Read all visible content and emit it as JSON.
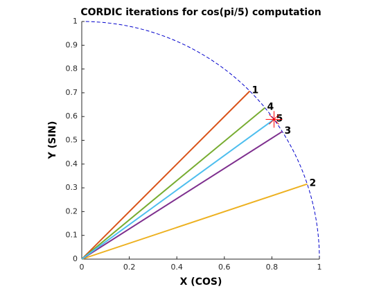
{
  "chart_data": {
    "type": "line",
    "title": "CORDIC iterations for cos(pi/5) computation",
    "x_label": "X (COS)",
    "y_label": "Y (SIN)",
    "xlim": [
      0,
      1
    ],
    "ylim": [
      0,
      1
    ],
    "xticks": [
      0,
      0.2,
      0.4,
      0.6,
      0.8,
      1
    ],
    "yticks": [
      0,
      0.1,
      0.2,
      0.3,
      0.4,
      0.5,
      0.6,
      0.7,
      0.8,
      0.9,
      1
    ],
    "series": [
      {
        "name": "1",
        "color": "#D95319",
        "x": [
          0,
          0.707
        ],
        "values": [
          0,
          0.707
        ]
      },
      {
        "name": "2",
        "color": "#EDB120",
        "x": [
          0,
          0.949
        ],
        "values": [
          0,
          0.316
        ]
      },
      {
        "name": "3",
        "color": "#7E2F8E",
        "x": [
          0,
          0.844
        ],
        "values": [
          0,
          0.537
        ]
      },
      {
        "name": "4",
        "color": "#77AC30",
        "x": [
          0,
          0.771
        ],
        "values": [
          0,
          0.637
        ]
      },
      {
        "name": "5",
        "color": "#4DBEEE",
        "x": [
          0,
          0.809
        ],
        "values": [
          0,
          0.588
        ]
      }
    ],
    "marker": {
      "x": 0.809,
      "y": 0.588,
      "color": "#FF0000"
    },
    "circle_color": "#0000CC"
  }
}
